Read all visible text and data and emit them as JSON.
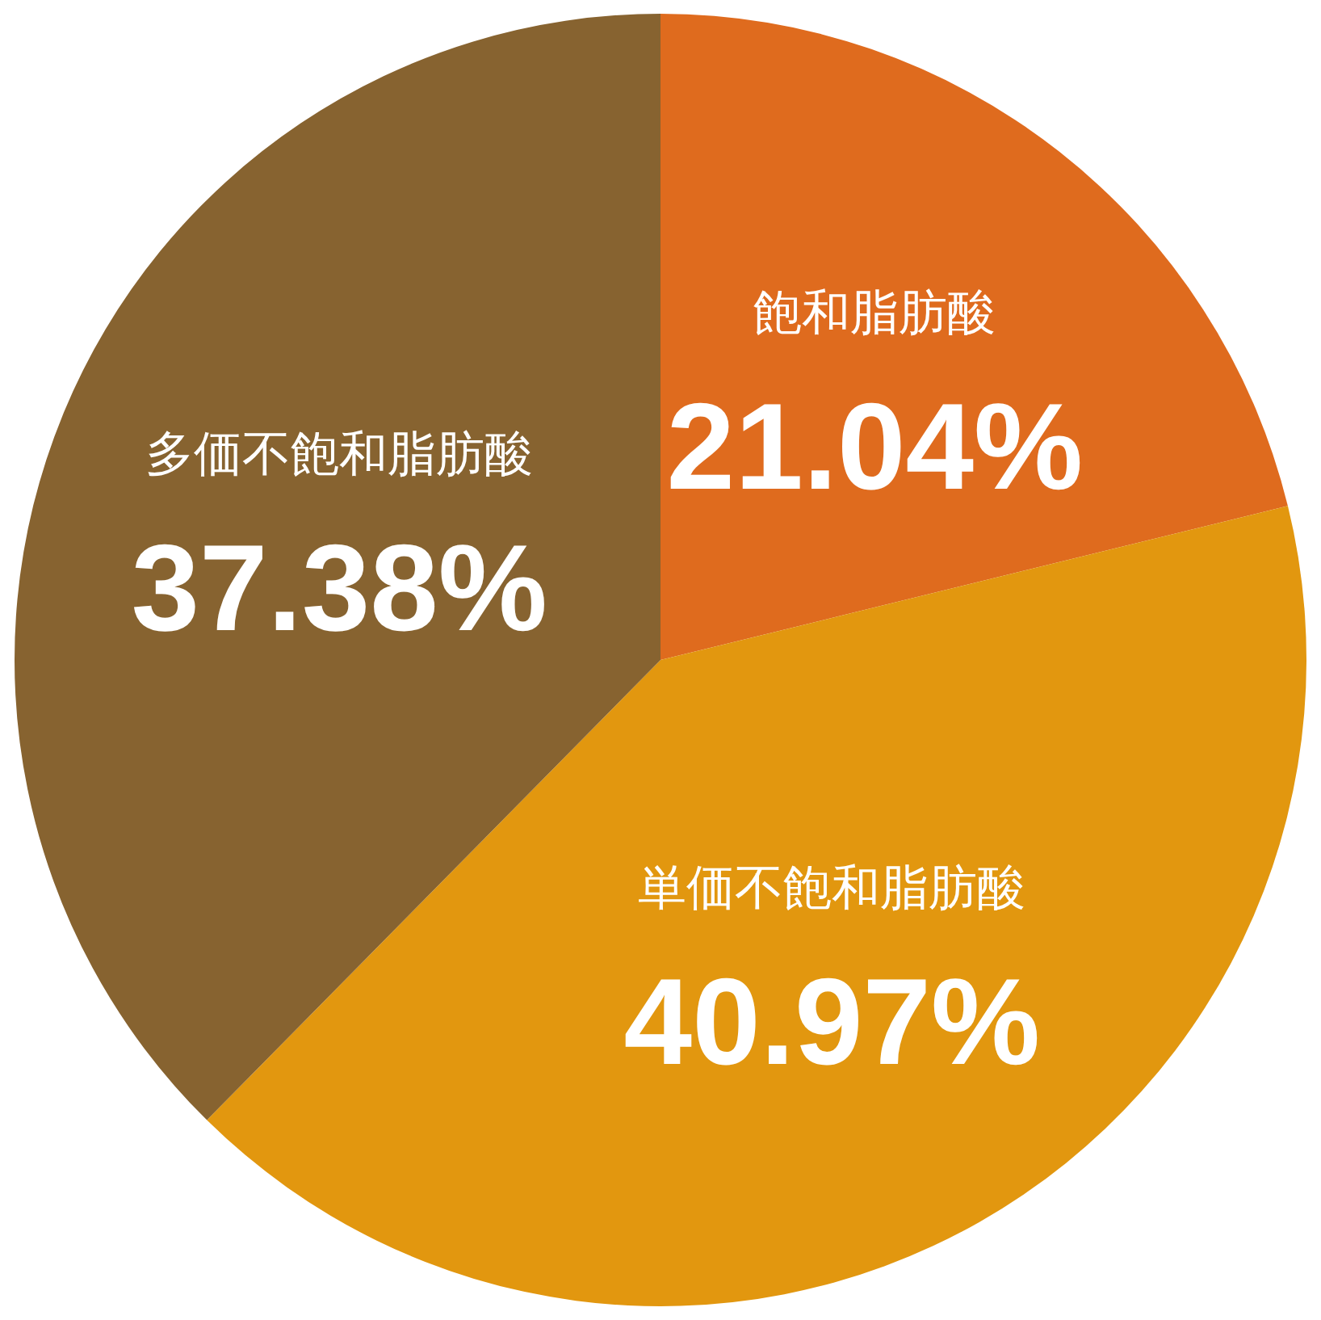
{
  "chart_data": {
    "type": "pie",
    "categories": [
      "飽和脂肪酸",
      "単価不飽和脂肪酸",
      "多価不飽和脂肪酸"
    ],
    "values": [
      21.04,
      40.97,
      37.38
    ],
    "colors": [
      "#df6b1e",
      "#e2970f",
      "#876330"
    ],
    "value_labels": [
      "21.04%",
      "40.97%",
      "37.38%"
    ]
  }
}
